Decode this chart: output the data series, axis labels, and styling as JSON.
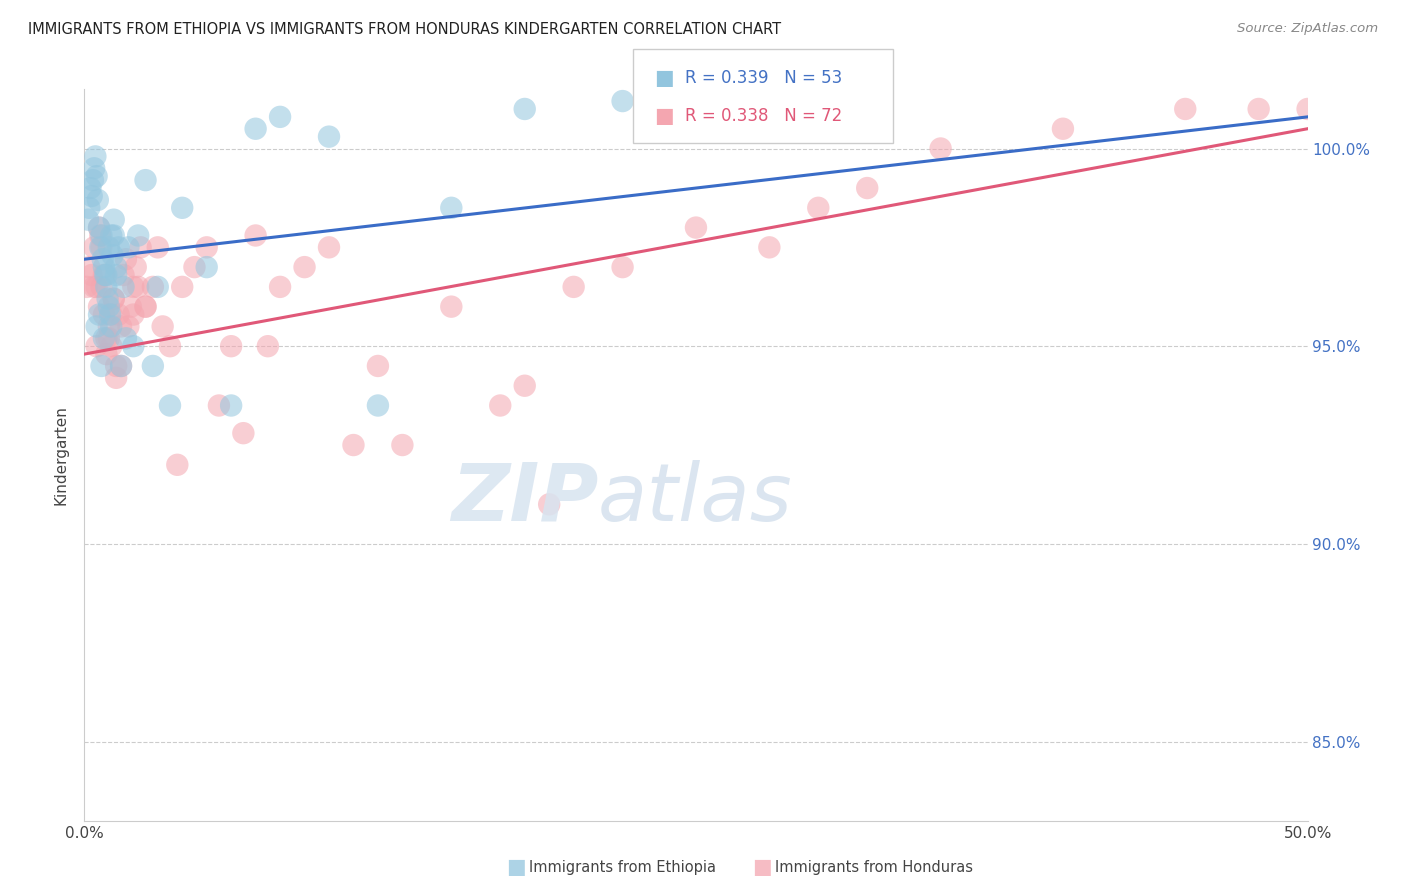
{
  "title": "IMMIGRANTS FROM ETHIOPIA VS IMMIGRANTS FROM HONDURAS KINDERGARTEN CORRELATION CHART",
  "source": "Source: ZipAtlas.com",
  "ylabel": "Kindergarten",
  "xlim": [
    0.0,
    50.0
  ],
  "ylim": [
    83.0,
    101.5
  ],
  "ytick_positions": [
    85.0,
    90.0,
    95.0,
    100.0
  ],
  "ytick_labels": [
    "85.0%",
    "90.0%",
    "95.0%",
    "100.0%"
  ],
  "legend_r_ethiopia": "0.339",
  "legend_n_ethiopia": "53",
  "legend_r_honduras": "0.338",
  "legend_n_honduras": "72",
  "ethiopia_color": "#92c5de",
  "honduras_color": "#f4a6b0",
  "ethiopia_line_color": "#3a6cc7",
  "honduras_line_color": "#e05878",
  "ethiopia_x": [
    0.15,
    0.2,
    0.25,
    0.3,
    0.35,
    0.4,
    0.45,
    0.5,
    0.55,
    0.6,
    0.65,
    0.7,
    0.75,
    0.8,
    0.85,
    0.9,
    0.95,
    1.0,
    1.05,
    1.1,
    1.15,
    1.2,
    1.3,
    1.4,
    1.5,
    1.6,
    1.7,
    1.8,
    2.0,
    2.2,
    2.5,
    2.8,
    3.0,
    3.5,
    4.0,
    5.0,
    6.0,
    7.0,
    8.0,
    10.0,
    12.0,
    15.0,
    18.0,
    1.0,
    1.1,
    0.5,
    0.6,
    0.7,
    0.8,
    0.9,
    1.2,
    1.3,
    22.0
  ],
  "ethiopia_y": [
    98.2,
    98.5,
    99.0,
    98.8,
    99.2,
    99.5,
    99.8,
    99.3,
    98.7,
    98.0,
    97.5,
    97.8,
    97.2,
    97.0,
    96.8,
    96.5,
    96.2,
    96.0,
    95.8,
    95.5,
    97.3,
    97.8,
    96.8,
    97.5,
    94.5,
    96.5,
    95.2,
    97.5,
    95.0,
    97.8,
    99.2,
    94.5,
    96.5,
    93.5,
    98.5,
    97.0,
    93.5,
    100.5,
    100.8,
    100.3,
    93.5,
    98.5,
    101.0,
    97.5,
    97.8,
    95.5,
    95.8,
    94.5,
    95.2,
    96.8,
    98.2,
    97.0,
    101.2
  ],
  "honduras_x": [
    0.1,
    0.2,
    0.3,
    0.4,
    0.5,
    0.5,
    0.6,
    0.65,
    0.7,
    0.8,
    0.9,
    1.0,
    1.1,
    1.2,
    1.3,
    1.4,
    1.5,
    1.6,
    1.7,
    1.8,
    1.9,
    2.0,
    2.1,
    2.2,
    2.3,
    2.5,
    2.8,
    3.0,
    3.2,
    3.5,
    4.0,
    4.5,
    5.0,
    6.0,
    7.0,
    8.0,
    9.0,
    10.0,
    12.0,
    15.0,
    18.0,
    20.0,
    22.0,
    25.0,
    28.0,
    30.0,
    32.0,
    35.0,
    40.0,
    0.6,
    0.7,
    0.8,
    0.9,
    1.0,
    1.1,
    1.2,
    1.3,
    2.0,
    2.5,
    13.0,
    17.0,
    1.5,
    0.4,
    3.8,
    5.5,
    6.5,
    7.5,
    11.0,
    19.0,
    45.0,
    48.0,
    50.0
  ],
  "honduras_y": [
    96.5,
    97.0,
    96.8,
    97.5,
    95.0,
    96.5,
    98.0,
    97.8,
    96.5,
    95.8,
    95.2,
    95.5,
    95.0,
    96.2,
    94.5,
    95.8,
    95.5,
    96.8,
    97.2,
    95.5,
    96.0,
    95.8,
    97.0,
    96.5,
    97.5,
    96.0,
    96.5,
    97.5,
    95.5,
    95.0,
    96.5,
    97.0,
    97.5,
    95.0,
    97.8,
    96.5,
    97.0,
    97.5,
    94.5,
    96.0,
    94.0,
    96.5,
    97.0,
    98.0,
    97.5,
    98.5,
    99.0,
    100.0,
    100.5,
    96.0,
    97.5,
    96.8,
    94.8,
    95.2,
    95.8,
    96.2,
    94.2,
    96.5,
    96.0,
    92.5,
    93.5,
    94.5,
    96.5,
    92.0,
    93.5,
    92.8,
    95.0,
    92.5,
    91.0,
    101.0,
    101.0,
    101.0
  ],
  "blue_line_x0": 0.0,
  "blue_line_y0": 97.2,
  "blue_line_x1": 50.0,
  "blue_line_y1": 100.8,
  "pink_line_x0": 0.0,
  "pink_line_y0": 94.8,
  "pink_line_x1": 50.0,
  "pink_line_y1": 100.5
}
